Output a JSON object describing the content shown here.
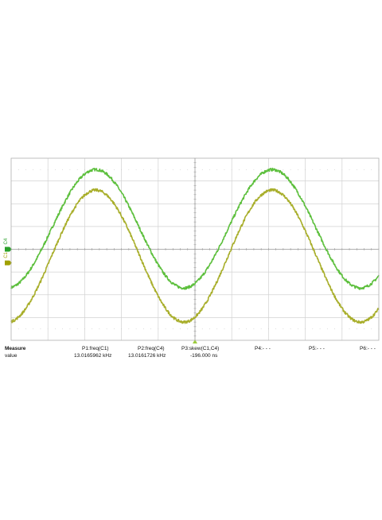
{
  "chart_data": {
    "type": "line",
    "title": "",
    "xlabel": "",
    "ylabel": "",
    "grid": true,
    "divisions": {
      "x": 10,
      "y": 8
    },
    "x_range_div": [
      0,
      10
    ],
    "y_range_div": [
      -4,
      4
    ],
    "series": [
      {
        "channel_label": "C4",
        "color": "#5cbf3c",
        "marker_color": "#2aa02a",
        "offset_div": 0,
        "amplitude_div": 2.6,
        "center_div": 0.9,
        "period_div": 4.8,
        "first_peak_div": 2.3
      },
      {
        "channel_label": "C1",
        "color": "#a8ae2a",
        "marker_color": "#a0a000",
        "offset_div": -0.6,
        "amplitude_div": 2.9,
        "center_div": -0.3,
        "period_div": 4.8,
        "first_peak_div": 2.3
      }
    ],
    "trigger_marker_div": 5.0
  },
  "measure": {
    "row_label": "Measure",
    "value_label": "value",
    "params": [
      {
        "label": "P1:freq(C1)",
        "value": "13.0165962 kHz"
      },
      {
        "label": "P2:freq(C4)",
        "value": "13.0161726 kHz"
      },
      {
        "label": "P3:skew(C1,C4)",
        "value": "-196.000 ns"
      },
      {
        "label": "P4:- - -",
        "value": ""
      },
      {
        "label": "P5:- - -",
        "value": ""
      },
      {
        "label": "P6:- - -",
        "value": ""
      }
    ]
  }
}
